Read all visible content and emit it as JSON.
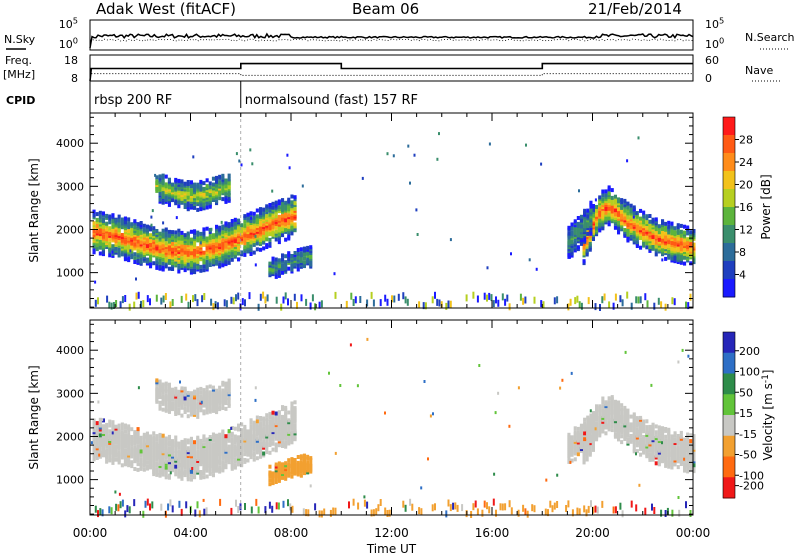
{
  "header": {
    "title": "Adak West (fitACF)",
    "beam": "Beam 06",
    "date": "21/Feb/2014"
  },
  "chart_data": [
    {
      "type": "line",
      "panel": "noise",
      "left_label": "N.Sky",
      "right_label": "N.Search",
      "left_ticks": [
        "10^5",
        "10^0"
      ],
      "right_ticks": [
        "10^5",
        "10^0"
      ],
      "left_series_style": "solid",
      "right_series_style": "dotted"
    },
    {
      "type": "line",
      "panel": "frequency",
      "left_label": "Freq.",
      "left_unit": "[MHz]",
      "right_label": "Nave",
      "left_ylim": [
        8,
        18
      ],
      "left_ticks": [
        "18",
        "8"
      ],
      "right_ylim": [
        0,
        60
      ],
      "right_ticks": [
        "60",
        "0"
      ],
      "freq_series": [
        {
          "t": 0.0,
          "v": 8
        },
        {
          "t": 0.05,
          "v": 12.8
        },
        {
          "t": 6.0,
          "v": 12.8
        },
        {
          "t": 6.0,
          "v": 14.7
        },
        {
          "t": 10.0,
          "v": 14.7
        },
        {
          "t": 10.0,
          "v": 12.8
        },
        {
          "t": 18.0,
          "v": 12.8
        },
        {
          "t": 18.0,
          "v": 14.7
        },
        {
          "t": 24.0,
          "v": 14.7
        }
      ],
      "nave_series": [
        {
          "t": 0.05,
          "v": 17
        },
        {
          "t": 6.0,
          "v": 17
        },
        {
          "t": 6.0,
          "v": 13
        },
        {
          "t": 18.0,
          "v": 13
        },
        {
          "t": 18.0,
          "v": 17
        },
        {
          "t": 24.0,
          "v": 17
        }
      ]
    },
    {
      "type": "table",
      "panel": "cpid",
      "label": "CPID",
      "segments": [
        {
          "start": 0.0,
          "end": 6.0,
          "text": "rbsp 200 RF"
        },
        {
          "start": 6.0,
          "end": 24.0,
          "text": "normalsound (fast) 157 RF"
        }
      ]
    },
    {
      "type": "heatmap",
      "panel": "power",
      "ylabel": "Slant Range [km]",
      "ylim": [
        180,
        4700
      ],
      "yticks": [
        1000,
        2000,
        3000,
        4000
      ],
      "colorbar": {
        "label": "Power [dB]",
        "range": [
          0,
          32
        ],
        "ticks": [
          4,
          8,
          12,
          16,
          20,
          24,
          28
        ],
        "colors": [
          "#1a1aff",
          "#1f3fbf",
          "#2c6c9a",
          "#3a8e6c",
          "#5cb43c",
          "#b6cf20",
          "#f2c21b",
          "#ff8c1a",
          "#ff5a14",
          "#ff1a1a"
        ]
      },
      "regions": [
        {
          "t0": 0.1,
          "t1": 8.2,
          "center": [
            [
              0.1,
              1950
            ],
            [
              1.0,
              1850
            ],
            [
              2.0,
              1680
            ],
            [
              3.0,
              1530
            ],
            [
              4.0,
              1480
            ],
            [
              5.0,
              1600
            ],
            [
              6.0,
              1820
            ],
            [
              7.0,
              2080
            ],
            [
              8.2,
              2350
            ]
          ],
          "width": 480,
          "peak": 30
        },
        {
          "t0": 2.6,
          "t1": 5.5,
          "center": [
            [
              2.6,
              3000
            ],
            [
              3.5,
              2820
            ],
            [
              4.2,
              2780
            ],
            [
              5.0,
              2900
            ],
            [
              5.5,
              3000
            ]
          ],
          "width": 330,
          "peak": 19
        },
        {
          "t0": 7.1,
          "t1": 8.8,
          "center": [
            [
              7.1,
              1080
            ],
            [
              7.6,
              1180
            ],
            [
              8.2,
              1300
            ],
            [
              8.8,
              1380
            ]
          ],
          "width": 230,
          "peak": 12
        },
        {
          "t0": 19.6,
          "t1": 24.0,
          "center": [
            [
              19.6,
              1650
            ],
            [
              20.2,
              2400
            ],
            [
              20.6,
              2550
            ],
            [
              21.4,
              2150
            ],
            [
              22.5,
              1800
            ],
            [
              24.0,
              1580
            ]
          ],
          "width": 430,
          "peak": 30
        },
        {
          "t0": 19.0,
          "t1": 19.9,
          "center": [
            [
              19.0,
              1700
            ],
            [
              19.5,
              2000
            ],
            [
              19.9,
              2300
            ]
          ],
          "width": 380,
          "peak": 12
        }
      ],
      "ground_scatter_band": [
        180,
        470
      ]
    },
    {
      "type": "heatmap",
      "panel": "velocity",
      "ylabel": "Slant Range [km]",
      "ylim": [
        180,
        4700
      ],
      "yticks": [
        1000,
        2000,
        3000,
        4000
      ],
      "colorbar": {
        "label": "Velocity [m s^-1]",
        "ticks": [
          "200",
          "100",
          "50",
          "15",
          "-15",
          "-50",
          "-100",
          "-200"
        ],
        "colors": [
          "#2626b8",
          "#2e6fc6",
          "#2e8c4a",
          "#62c43a",
          "#c8c8c4",
          "#f2a030",
          "#ff6a10",
          "#f01818"
        ]
      },
      "regions": [
        {
          "t0": 0.1,
          "t1": 8.2,
          "center": [
            [
              0.1,
              1950
            ],
            [
              1.0,
              1850
            ],
            [
              2.0,
              1680
            ],
            [
              3.0,
              1530
            ],
            [
              4.0,
              1480
            ],
            [
              5.0,
              1600
            ],
            [
              6.0,
              1820
            ],
            [
              7.0,
              2080
            ],
            [
              8.2,
              2350
            ]
          ],
          "width": 480,
          "class": "-15 to 15"
        },
        {
          "t0": 2.6,
          "t1": 5.5,
          "center": [
            [
              2.6,
              3000
            ],
            [
              3.5,
              2820
            ],
            [
              4.2,
              2780
            ],
            [
              5.0,
              2900
            ],
            [
              5.5,
              3000
            ]
          ],
          "width": 330,
          "class": "-15 to 15"
        },
        {
          "t0": 7.1,
          "t1": 8.8,
          "center": [
            [
              7.1,
              1080
            ],
            [
              7.6,
              1180
            ],
            [
              8.2,
              1300
            ],
            [
              8.8,
              1380
            ]
          ],
          "width": 230,
          "class": "-50 to -100"
        },
        {
          "t0": 19.6,
          "t1": 24.0,
          "center": [
            [
              19.6,
              1650
            ],
            [
              20.2,
              2400
            ],
            [
              20.6,
              2550
            ],
            [
              21.4,
              2150
            ],
            [
              22.5,
              1800
            ],
            [
              24.0,
              1580
            ]
          ],
          "width": 430,
          "class": "-15 to 15"
        },
        {
          "t0": 19.0,
          "t1": 19.9,
          "center": [
            [
              19.0,
              1700
            ],
            [
              19.5,
              2000
            ],
            [
              19.9,
              2300
            ]
          ],
          "width": 380,
          "class": "-15 to 15"
        }
      ],
      "ground_scatter_band": [
        180,
        470
      ]
    }
  ],
  "xaxis": {
    "label": "Time UT",
    "ticks": [
      "00:00",
      "04:00",
      "08:00",
      "12:00",
      "16:00",
      "20:00",
      "00:00"
    ],
    "range_hours": [
      0,
      24
    ]
  }
}
